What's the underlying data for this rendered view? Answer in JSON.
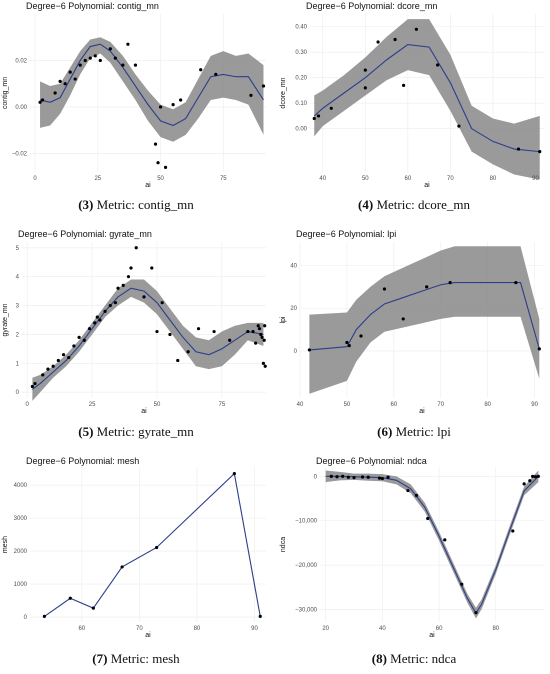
{
  "colors": {
    "band": "#888888",
    "line": "#2c3e8c",
    "point": "#000000",
    "grid": "#ececec"
  },
  "panels": [
    {
      "title": "Degree−6 Polynomial: contig_mn",
      "caption_num": "(3)",
      "caption_text": " Metric: contig_mn"
    },
    {
      "title": "Degree−6 Polynomial: dcore_mn",
      "caption_num": "(4)",
      "caption_text": " Metric: dcore_mn"
    },
    {
      "title": "Degree−6 Polynomial: gyrate_mn",
      "caption_num": "(5)",
      "caption_text": " Metric: gyrate_mn"
    },
    {
      "title": "Degree−6 Polynomial: lpi",
      "caption_num": "(6)",
      "caption_text": " Metric: lpi"
    },
    {
      "title": "Degree−6 Polynomial: mesh",
      "caption_num": "(7)",
      "caption_text": " Metric: mesh"
    },
    {
      "title": "Degree−6 Polynomial: ndca",
      "caption_num": "(8)",
      "caption_text": " Metric: ndca"
    }
  ],
  "chart_data": [
    {
      "type": "scatter",
      "title": "Degree−6 Polynomial: contig_mn",
      "xlabel": "ai",
      "ylabel": "contig_mn",
      "xlim": [
        -2,
        92
      ],
      "ylim": [
        -0.028,
        0.04
      ],
      "xticks": [
        0,
        25,
        50,
        75
      ],
      "yticks": [
        -0.02,
        0,
        0.02
      ],
      "ytick_labels": [
        "−0.02",
        "0.00",
        "0.02"
      ],
      "points": {
        "x": [
          2,
          3,
          8,
          10,
          12,
          14,
          16,
          18,
          20,
          22,
          24,
          26,
          30,
          32,
          35,
          37,
          40,
          48,
          49,
          50,
          52,
          55,
          58,
          66,
          72,
          86,
          91
        ],
        "y": [
          0.002,
          0.003,
          0.006,
          0.011,
          0.01,
          0.015,
          0.012,
          0.018,
          0.02,
          0.021,
          0.022,
          0.02,
          0.025,
          0.021,
          0.018,
          0.027,
          0.018,
          -0.016,
          -0.024,
          0.0,
          -0.026,
          0.001,
          0.003,
          0.016,
          0.014,
          0.005,
          0.009
        ]
      },
      "fit": {
        "x": [
          2,
          6,
          10,
          14,
          18,
          22,
          26,
          30,
          35,
          40,
          45,
          50,
          55,
          60,
          65,
          70,
          75,
          80,
          85,
          91
        ],
        "y": [
          0.003,
          0.002,
          0.004,
          0.012,
          0.02,
          0.026,
          0.027,
          0.024,
          0.017,
          0.009,
          0.001,
          -0.006,
          -0.008,
          -0.005,
          0.004,
          0.013,
          0.014,
          0.013,
          0.013,
          0.003
        ]
      },
      "band": {
        "upper": [
          0.011,
          0.009,
          0.01,
          0.017,
          0.024,
          0.029,
          0.03,
          0.028,
          0.022,
          0.014,
          0.007,
          0.001,
          -0.001,
          0.002,
          0.012,
          0.022,
          0.024,
          0.022,
          0.023,
          0.018
        ],
        "lower": [
          -0.009,
          -0.008,
          -0.003,
          0.005,
          0.014,
          0.021,
          0.023,
          0.019,
          0.011,
          0.003,
          -0.006,
          -0.013,
          -0.015,
          -0.012,
          -0.005,
          0.003,
          0.004,
          0.003,
          0.001,
          -0.012
        ]
      }
    },
    {
      "type": "scatter",
      "title": "Degree−6 Polynomial: dcore_mn",
      "xlabel": "ai",
      "ylabel": "dcore_mn",
      "xlim": [
        37,
        92
      ],
      "ylim": [
        -0.17,
        0.45
      ],
      "xticks": [
        40,
        50,
        60,
        70,
        80,
        90
      ],
      "yticks": [
        0,
        0.1,
        0.2,
        0.3,
        0.4
      ],
      "ytick_labels": [
        "0.00",
        "0.10",
        "0.20",
        "0.30",
        "0.40"
      ],
      "points": {
        "x": [
          38,
          39,
          42,
          50,
          50,
          53,
          57,
          59,
          62,
          67,
          72,
          86,
          91
        ],
        "y": [
          0.04,
          0.05,
          0.08,
          0.16,
          0.23,
          0.34,
          0.35,
          0.17,
          0.39,
          0.25,
          0.01,
          -0.08,
          -0.09
        ]
      },
      "fit": {
        "x": [
          38,
          40,
          45,
          50,
          55,
          60,
          65,
          70,
          75,
          80,
          85,
          91
        ],
        "y": [
          0.05,
          0.08,
          0.14,
          0.2,
          0.27,
          0.33,
          0.32,
          0.18,
          0.0,
          -0.05,
          -0.08,
          -0.09
        ]
      },
      "band": {
        "upper": [
          0.13,
          0.15,
          0.21,
          0.28,
          0.36,
          0.43,
          0.43,
          0.29,
          0.09,
          0.04,
          0.02,
          0.05
        ],
        "lower": [
          -0.03,
          0.01,
          0.07,
          0.13,
          0.19,
          0.23,
          0.21,
          0.07,
          -0.09,
          -0.14,
          -0.18,
          -0.2
        ]
      }
    },
    {
      "type": "scatter",
      "title": "Degree−6 Polynomial: gyrate_mn",
      "xlabel": "ai",
      "ylabel": "gyrate_mn",
      "xlim": [
        -2,
        92
      ],
      "ylim": [
        -0.2,
        5.2
      ],
      "xticks": [
        0,
        25,
        50,
        75
      ],
      "yticks": [
        0,
        1,
        2,
        3,
        4,
        5
      ],
      "ytick_labels": [
        "0",
        "1",
        "2",
        "3",
        "4",
        "5"
      ],
      "points": {
        "x": [
          2,
          3,
          6,
          8,
          10,
          12,
          14,
          16,
          18,
          20,
          22,
          24,
          26,
          27,
          28,
          30,
          32,
          34,
          35,
          37,
          39,
          40,
          42,
          45,
          48,
          50,
          52,
          55,
          58,
          62,
          66,
          72,
          78,
          85,
          87,
          88,
          89,
          89.5,
          90,
          90.5,
          91,
          91.3,
          91.5,
          91.7
        ],
        "y": [
          0.2,
          0.3,
          0.6,
          0.8,
          0.9,
          1.1,
          1.3,
          1.2,
          1.6,
          1.9,
          1.8,
          2.2,
          2.4,
          2.6,
          2.5,
          2.8,
          3.0,
          3.1,
          3.6,
          3.7,
          4.0,
          4.3,
          5.0,
          3.3,
          4.3,
          2.1,
          3.1,
          2.0,
          1.1,
          1.4,
          2.2,
          2.1,
          1.8,
          2.1,
          2.1,
          1.7,
          2.3,
          2.2,
          2.0,
          1.9,
          1.0,
          1.8,
          2.3,
          0.9
        ]
      },
      "fit": {
        "x": [
          2,
          5,
          10,
          15,
          20,
          25,
          30,
          35,
          40,
          45,
          50,
          55,
          60,
          65,
          70,
          75,
          80,
          85,
          91
        ],
        "y": [
          0.1,
          0.3,
          0.7,
          1.1,
          1.6,
          2.2,
          2.8,
          3.3,
          3.6,
          3.5,
          3.1,
          2.5,
          1.9,
          1.4,
          1.3,
          1.5,
          1.8,
          2.1,
          2.0
        ]
      },
      "band": {
        "upper": [
          0.5,
          0.6,
          0.9,
          1.3,
          1.8,
          2.4,
          3.0,
          3.6,
          3.9,
          3.9,
          3.5,
          2.9,
          2.3,
          1.9,
          1.8,
          2.1,
          2.3,
          2.4,
          2.4
        ],
        "lower": [
          -0.3,
          0.0,
          0.5,
          0.9,
          1.4,
          2.0,
          2.6,
          3.0,
          3.3,
          3.1,
          2.7,
          2.1,
          1.5,
          0.9,
          0.8,
          0.9,
          1.3,
          1.8,
          1.6
        ]
      }
    },
    {
      "type": "scatter",
      "title": "Degree−6 Polynomial: lpi",
      "xlabel": "ai",
      "ylabel": "lpi",
      "xlim": [
        40,
        92
      ],
      "ylim": [
        -22,
        51
      ],
      "xticks": [
        40,
        50,
        60,
        70,
        80,
        90
      ],
      "yticks": [
        0,
        20,
        40
      ],
      "ytick_labels": [
        "0",
        "20",
        "40"
      ],
      "points": {
        "x": [
          42,
          50,
          50.5,
          53,
          58,
          62,
          67,
          72,
          86,
          91
        ],
        "y": [
          0.5,
          4,
          2.5,
          7,
          29,
          15,
          30,
          32,
          32,
          1
        ]
      },
      "fit": {
        "x": [
          42,
          50,
          52,
          55,
          58,
          62,
          66,
          70,
          73,
          76,
          80,
          84,
          87,
          91
        ],
        "y": [
          0.5,
          2,
          10,
          17,
          22,
          25,
          28,
          31,
          32,
          32,
          32,
          32,
          32,
          1
        ]
      },
      "band": {
        "upper": [
          17,
          18,
          24,
          30,
          35,
          39,
          43,
          47,
          49,
          49,
          49,
          49,
          49,
          15
        ],
        "lower": [
          -20,
          -14,
          -5,
          4,
          9,
          11,
          13,
          15,
          16,
          16,
          16,
          16,
          16,
          -13
        ]
      }
    },
    {
      "type": "line",
      "title": "Degree−6 Polynomial: mesh",
      "xlabel": "ai",
      "ylabel": "mesh",
      "xlim": [
        51,
        92
      ],
      "ylim": [
        -150,
        4550
      ],
      "xticks": [
        60,
        70,
        80,
        90
      ],
      "yticks": [
        0,
        1000,
        2000,
        3000,
        4000
      ],
      "ytick_labels": [
        "0",
        "1000",
        "2000",
        "3000",
        "4000"
      ],
      "points": {
        "x": [
          53.5,
          58,
          62,
          67,
          73,
          86.5,
          91
        ],
        "y": [
          20,
          570,
          270,
          1520,
          2110,
          4350,
          20
        ]
      },
      "fit": {
        "x": [
          53.5,
          58,
          62,
          67,
          73,
          86.5,
          91
        ],
        "y": [
          20,
          570,
          270,
          1520,
          2110,
          4350,
          20
        ]
      }
    },
    {
      "type": "scatter",
      "title": "Degree−6 Polynomial: ndca",
      "xlabel": "ai",
      "ylabel": "ndca",
      "xlim": [
        18,
        97
      ],
      "ylim": [
        -32800,
        2100
      ],
      "xticks": [
        20,
        40,
        60,
        80
      ],
      "yticks": [
        0,
        -10000,
        -20000,
        -30000
      ],
      "ytick_labels": [
        "0",
        "−10,000",
        "−20,000",
        "−30,000"
      ],
      "points": {
        "x": [
          22,
          24,
          26,
          28,
          30,
          33,
          35,
          39,
          40,
          42,
          49,
          52,
          56,
          62,
          68,
          73,
          86,
          90,
          92,
          93,
          94,
          95
        ],
        "y": [
          0,
          -100,
          0,
          -200,
          -300,
          -150,
          -200,
          -400,
          -500,
          -200,
          -3200,
          -4300,
          -9500,
          -14300,
          -24300,
          -30700,
          -12300,
          -1700,
          -1000,
          0,
          -100,
          0
        ]
      },
      "fit": {
        "x": [
          20,
          25,
          30,
          35,
          40,
          45,
          50,
          55,
          60,
          65,
          70,
          73,
          75,
          80,
          85,
          90,
          95
        ],
        "y": [
          0,
          0,
          -100,
          -200,
          -300,
          -900,
          -2800,
          -7000,
          -13500,
          -20500,
          -27500,
          -30800,
          -28800,
          -21000,
          -12000,
          -3300,
          0
        ]
      },
      "band": {
        "upper": [
          1300,
          1000,
          600,
          600,
          500,
          0,
          -1800,
          -6000,
          -12500,
          -19500,
          -26500,
          -29600,
          -27700,
          -20000,
          -11000,
          -2300,
          1300
        ],
        "lower": [
          -1300,
          -900,
          -800,
          -1000,
          -1100,
          -1800,
          -3800,
          -8000,
          -14500,
          -21500,
          -28500,
          -32000,
          -29900,
          -22000,
          -13000,
          -4300,
          -1300
        ]
      }
    }
  ]
}
